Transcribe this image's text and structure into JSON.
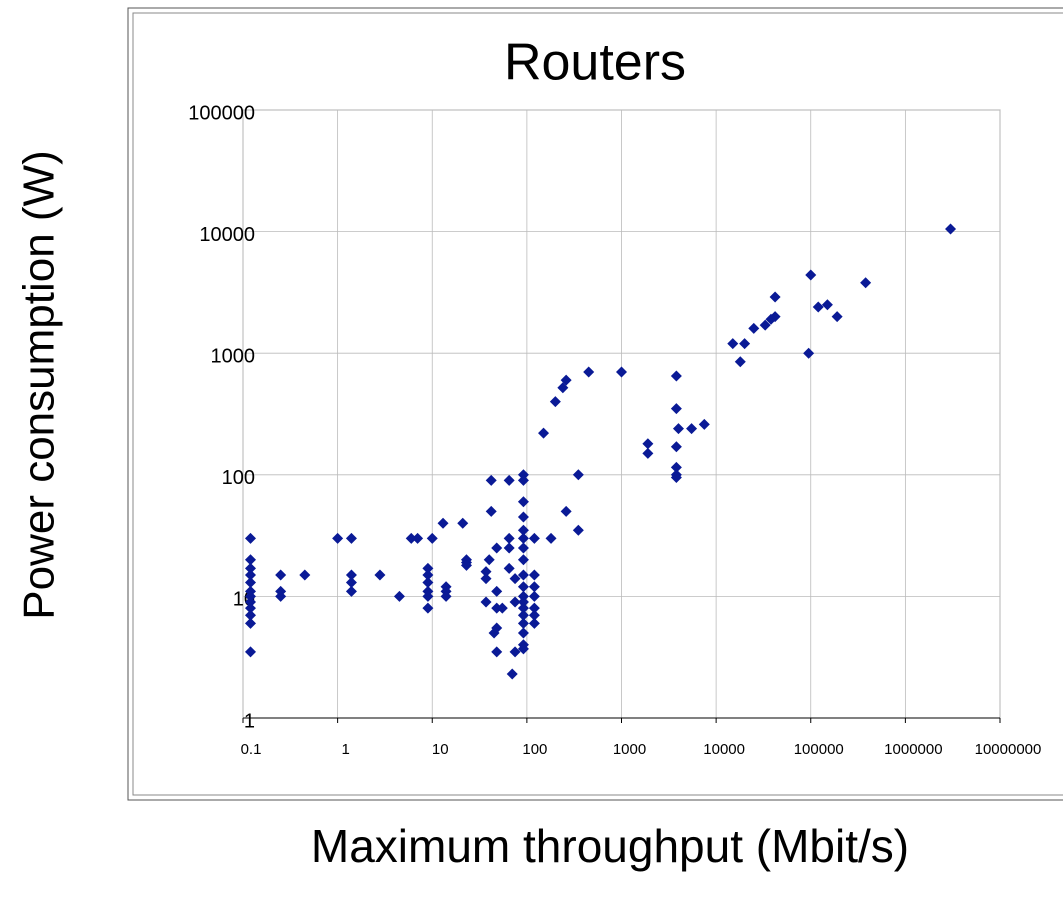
{
  "chart_data": {
    "type": "scatter",
    "title": "Routers",
    "x_label": "Maximum throughput (Mbit/s)",
    "y_label": "Power consumption (W)",
    "x_scale": "log",
    "y_scale": "log",
    "grid": true,
    "color": "#0a1a96",
    "xlim": [
      0.1,
      10000000
    ],
    "ylim": [
      1,
      100000
    ],
    "xticks": [
      0.1,
      1,
      10,
      100,
      1000,
      10000,
      100000,
      1000000,
      10000000
    ],
    "yticks": [
      1,
      10,
      100,
      1000,
      10000,
      100000
    ],
    "x": [
      0.12,
      0.12,
      0.12,
      0.12,
      0.12,
      0.12,
      0.12,
      0.12,
      0.12,
      0.12,
      0.12,
      0.12,
      0.25,
      0.25,
      0.25,
      0.45,
      1,
      1.4,
      1.4,
      1.4,
      1.4,
      2.8,
      4.5,
      6,
      7,
      9,
      9,
      9,
      9,
      9,
      9,
      10,
      13,
      14,
      14,
      14,
      21,
      23,
      23,
      23,
      37,
      37,
      37,
      40,
      42,
      42,
      45,
      48,
      48,
      48,
      48,
      48,
      55,
      65,
      65,
      65,
      65,
      70,
      75,
      75,
      75,
      92,
      92,
      92,
      92,
      92,
      92,
      92,
      92,
      92,
      92,
      92,
      92,
      92,
      92,
      92,
      92,
      92,
      92,
      120,
      120,
      120,
      120,
      120,
      120,
      120,
      150,
      180,
      200,
      240,
      260,
      260,
      350,
      350,
      450,
      1000,
      1900,
      1900,
      3800,
      3800,
      3800,
      3800,
      3800,
      3800,
      4000,
      5500,
      7500,
      15000,
      18000,
      20000,
      25000,
      33000,
      38000,
      42000,
      42000,
      95000,
      100000,
      120000,
      150000,
      190000,
      380000,
      3000000
    ],
    "y": [
      30,
      20,
      17,
      15,
      13,
      11,
      10,
      9,
      8,
      7,
      6,
      3.5,
      15,
      11,
      10,
      15,
      30,
      30,
      15,
      13,
      11,
      15,
      10,
      30,
      30,
      10,
      17,
      15,
      13,
      11,
      8,
      30,
      40,
      12,
      11,
      10,
      40,
      20,
      19,
      18,
      16,
      14,
      9,
      20,
      90,
      50,
      5,
      25,
      11,
      5.5,
      3.5,
      8,
      8,
      90,
      30,
      25,
      17,
      2.3,
      3.5,
      9,
      14,
      100,
      90,
      60,
      45,
      35,
      30,
      25,
      20,
      15,
      12,
      10,
      9,
      8,
      7,
      6,
      5,
      4,
      3.7,
      30,
      15,
      12,
      10,
      8,
      7,
      6,
      220,
      30,
      400,
      520,
      50,
      600,
      35,
      100,
      700,
      700,
      180,
      150,
      650,
      350,
      170,
      115,
      100,
      95,
      240,
      240,
      260,
      1200,
      850,
      1200,
      1600,
      1700,
      1900,
      2900,
      2000,
      1000,
      4400,
      2400,
      2500,
      2000,
      3800,
      10500
    ]
  }
}
